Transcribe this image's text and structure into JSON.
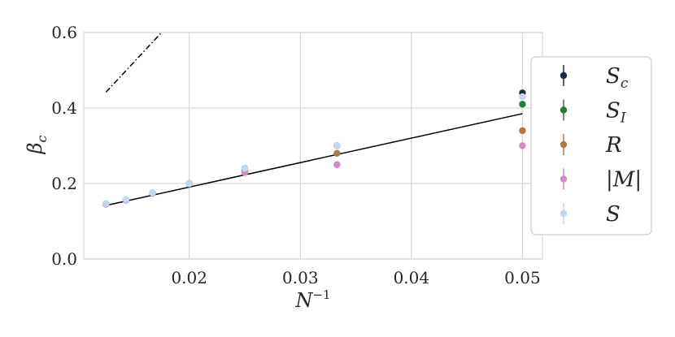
{
  "chart_data": {
    "type": "scatter",
    "xlabel": "N⁻¹",
    "ylabel": "βc",
    "xlim": [
      0.0105,
      0.0518
    ],
    "ylim": [
      0.0,
      0.6
    ],
    "x_ticks": [
      "0.02",
      "0.03",
      "0.04",
      "0.05"
    ],
    "y_ticks": [
      "0.0",
      "0.2",
      "0.4",
      "0.6"
    ],
    "x_tick_values": [
      0.02,
      0.03,
      0.04,
      0.05
    ],
    "y_tick_values": [
      0.0,
      0.2,
      0.4,
      0.6
    ],
    "grid": true,
    "legend_position": "right",
    "series": [
      {
        "name": "Sc",
        "color": "#1b2a47",
        "points": [
          [
            0.05,
            0.44
          ],
          [
            0.0333,
            0.3
          ],
          [
            0.025,
            0.24
          ],
          [
            0.02,
            0.2
          ],
          [
            0.0167,
            0.175
          ],
          [
            0.0143,
            0.157
          ],
          [
            0.0125,
            0.146
          ]
        ]
      },
      {
        "name": "SI",
        "color": "#2a7a3c",
        "points": [
          [
            0.05,
            0.41
          ],
          [
            0.0333,
            0.3
          ],
          [
            0.025,
            0.235
          ],
          [
            0.02,
            0.2
          ],
          [
            0.0167,
            0.175
          ],
          [
            0.0143,
            0.157
          ],
          [
            0.0125,
            0.146
          ]
        ]
      },
      {
        "name": "R",
        "color": "#a87a4d",
        "points": [
          [
            0.05,
            0.34
          ],
          [
            0.0333,
            0.28
          ],
          [
            0.025,
            0.232
          ],
          [
            0.02,
            0.2
          ],
          [
            0.0167,
            0.175
          ],
          [
            0.0143,
            0.156
          ],
          [
            0.0125,
            0.145
          ]
        ]
      },
      {
        "name": "|M|",
        "color": "#d48ac4",
        "points": [
          [
            0.05,
            0.3
          ],
          [
            0.0333,
            0.25
          ],
          [
            0.025,
            0.229
          ],
          [
            0.02,
            0.199
          ],
          [
            0.0167,
            0.174
          ],
          [
            0.0143,
            0.156
          ],
          [
            0.0125,
            0.145
          ]
        ]
      },
      {
        "name": "S",
        "color": "#c1d8f0",
        "points": [
          [
            0.05,
            0.43
          ],
          [
            0.0333,
            0.3
          ],
          [
            0.025,
            0.24
          ],
          [
            0.02,
            0.2
          ],
          [
            0.0167,
            0.176
          ],
          [
            0.0143,
            0.158
          ],
          [
            0.0125,
            0.147
          ]
        ]
      }
    ],
    "lines": [
      {
        "style": "solid",
        "color": "#000000",
        "points": [
          [
            0.0125,
            0.142
          ],
          [
            0.05,
            0.385
          ]
        ]
      },
      {
        "style": "dash-dot",
        "color": "#000000",
        "points": [
          [
            0.0125,
            0.442
          ],
          [
            0.0175,
            0.6
          ]
        ]
      }
    ]
  }
}
